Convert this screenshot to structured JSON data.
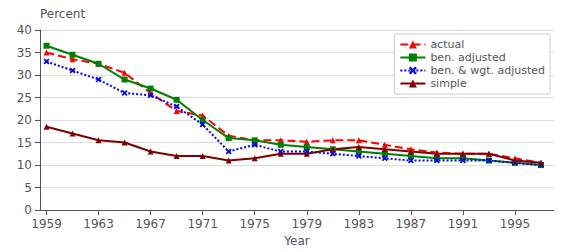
{
  "chart_data": {
    "type": "line",
    "xlabel": "Year",
    "ylabel": "Percent",
    "x": [
      1959,
      1961,
      1963,
      1965,
      1967,
      1969,
      1971,
      1973,
      1975,
      1977,
      1979,
      1981,
      1983,
      1985,
      1987,
      1989,
      1991,
      1993,
      1995,
      1997
    ],
    "series": [
      {
        "name": "actual",
        "color": "#ff0000",
        "line_style": "dashed",
        "marker": "triangle",
        "values": [
          35.0,
          33.5,
          32.5,
          30.5,
          26.0,
          22.0,
          21.0,
          16.5,
          15.5,
          15.5,
          15.2,
          15.5,
          15.5,
          14.5,
          13.5,
          12.8,
          12.5,
          12.5,
          11.5,
          10.5
        ]
      },
      {
        "name": "ben. adjusted",
        "color": "#008000",
        "line_style": "solid",
        "marker": "square",
        "values": [
          36.5,
          34.5,
          32.5,
          29.0,
          27.0,
          24.5,
          20.0,
          16.0,
          15.5,
          14.5,
          14.0,
          13.5,
          13.0,
          12.5,
          12.0,
          11.5,
          11.5,
          11.0,
          10.5,
          10.0
        ]
      },
      {
        "name": "ben. & wgt. adjusted",
        "color": "#0000ff",
        "line_style": "dotted",
        "marker": "x",
        "values": [
          33.0,
          31.0,
          29.0,
          26.0,
          25.5,
          23.0,
          19.0,
          13.0,
          14.5,
          13.0,
          13.0,
          12.5,
          12.0,
          11.5,
          11.0,
          11.0,
          11.0,
          11.0,
          10.5,
          10.0
        ]
      },
      {
        "name": "simple",
        "color": "#800000",
        "line_style": "solid",
        "marker": "triangle",
        "values": [
          18.5,
          17.0,
          15.5,
          15.0,
          13.0,
          12.0,
          12.0,
          11.0,
          11.5,
          12.5,
          12.5,
          13.5,
          14.0,
          13.5,
          13.0,
          12.5,
          12.5,
          12.5,
          11.0,
          10.5
        ]
      }
    ],
    "xlim": [
      1958.5,
      1998
    ],
    "xticks": [
      1959,
      1963,
      1967,
      1971,
      1975,
      1979,
      1983,
      1987,
      1991,
      1995
    ],
    "ylim": [
      0,
      40
    ],
    "yticks": [
      0,
      5,
      10,
      15,
      20,
      25,
      30,
      35,
      40
    ],
    "grid": true,
    "legend": "upper right"
  }
}
